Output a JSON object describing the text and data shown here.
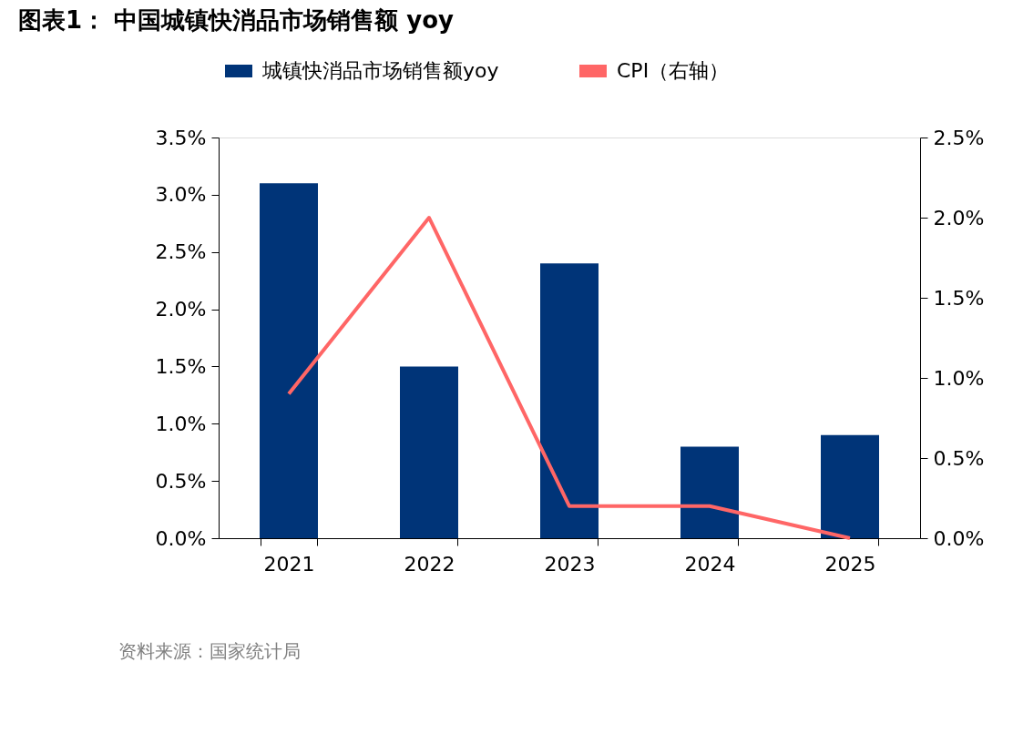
{
  "chart_data": {
    "type": "bar",
    "title": "图表1：  中国城镇快消品市场销售额 yoy",
    "categories": [
      "2021",
      "2022",
      "2023",
      "2024",
      "2025"
    ],
    "series": [
      {
        "name": "城镇快消品市场销售额yoy",
        "color": "#003478",
        "values": [
          3.1,
          1.5,
          2.4,
          0.8,
          0.9
        ]
      },
      {
        "name": "CPI（右轴）",
        "type": "line",
        "axis": "y2",
        "color": "#ff6666",
        "values": [
          0.9,
          2.0,
          0.2,
          0.2,
          0.0
        ]
      }
    ],
    "ylim": [
      0,
      3.5
    ],
    "yticks": [
      {
        "value": 0,
        "label": "0.0%"
      },
      {
        "value": 0.5,
        "label": "0.5%"
      },
      {
        "value": 1,
        "label": "1.0%"
      },
      {
        "value": 1.5,
        "label": "1.5%"
      },
      {
        "value": 2,
        "label": "2.0%"
      },
      {
        "value": 2.5,
        "label": "2.5%"
      },
      {
        "value": 3,
        "label": "3.0%"
      },
      {
        "value": 3.5,
        "label": "3.5%"
      }
    ],
    "y2lim": [
      0,
      2.5
    ],
    "y2ticks": [
      {
        "value": 0,
        "label": "0.0%"
      },
      {
        "value": 0.5,
        "label": "0.5%"
      },
      {
        "value": 1,
        "label": "1.0%"
      },
      {
        "value": 1.5,
        "label": "1.5%"
      },
      {
        "value": 2,
        "label": "2.0%"
      },
      {
        "value": 2.5,
        "label": "2.5%"
      }
    ],
    "legend": "top",
    "grid": false,
    "marker": "none",
    "line_style": "solid",
    "annotations": [
      "资料来源：国家统计局"
    ]
  }
}
